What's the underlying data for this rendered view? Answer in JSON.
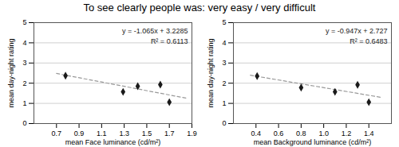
{
  "chart_data": [
    {
      "type": "scatter",
      "title": "To see clearly people was: very easy / very difficult",
      "xlabel": "mean Face luminance (cd/m²)",
      "ylabel": "mean day-night rating",
      "xlim": [
        0.5,
        1.9
      ],
      "ylim": [
        0,
        5
      ],
      "xticks": [
        0.7,
        0.9,
        1.1,
        1.3,
        1.5,
        1.7,
        1.9
      ],
      "yticks": [
        0,
        1,
        2,
        3,
        4,
        5
      ],
      "grid": "y",
      "x": [
        0.78,
        1.29,
        1.42,
        1.62,
        1.7
      ],
      "values": [
        2.37,
        1.57,
        1.85,
        1.93,
        1.06
      ],
      "color": "#1a1a1a",
      "marker": "diamond",
      "trendline": {
        "x": [
          0.7,
          1.85
        ],
        "values": [
          2.483,
          1.25825
        ],
        "color": "#999999",
        "line_style": "dashed"
      },
      "annotations": [
        "y = -1.065x + 3.2285",
        "R² = 0.6113"
      ]
    },
    {
      "type": "scatter",
      "xlabel": "mean Background luminance (cd/m²)",
      "ylabel": "mean day-night rating",
      "xlim": [
        0.2,
        1.6
      ],
      "ylim": [
        0,
        5
      ],
      "xticks": [
        0.4,
        0.6,
        0.8,
        {
          "value": 1,
          "label": "1.0"
        },
        1.2,
        1.4
      ],
      "yticks": [
        0,
        1,
        2,
        3,
        4,
        5
      ],
      "grid": "y",
      "x": [
        0.41,
        0.8,
        1.1,
        1.3,
        1.4
      ],
      "values": [
        2.35,
        1.78,
        1.57,
        1.92,
        1.06
      ],
      "color": "#1a1a1a",
      "marker": "diamond",
      "trendline": {
        "x": [
          0.35,
          1.5
        ],
        "values": [
          2.39555,
          1.3065
        ],
        "color": "#999999",
        "line_style": "dashed"
      },
      "annotations": [
        "y = -0.947x + 2.727",
        "R² = 0.6483"
      ]
    }
  ]
}
